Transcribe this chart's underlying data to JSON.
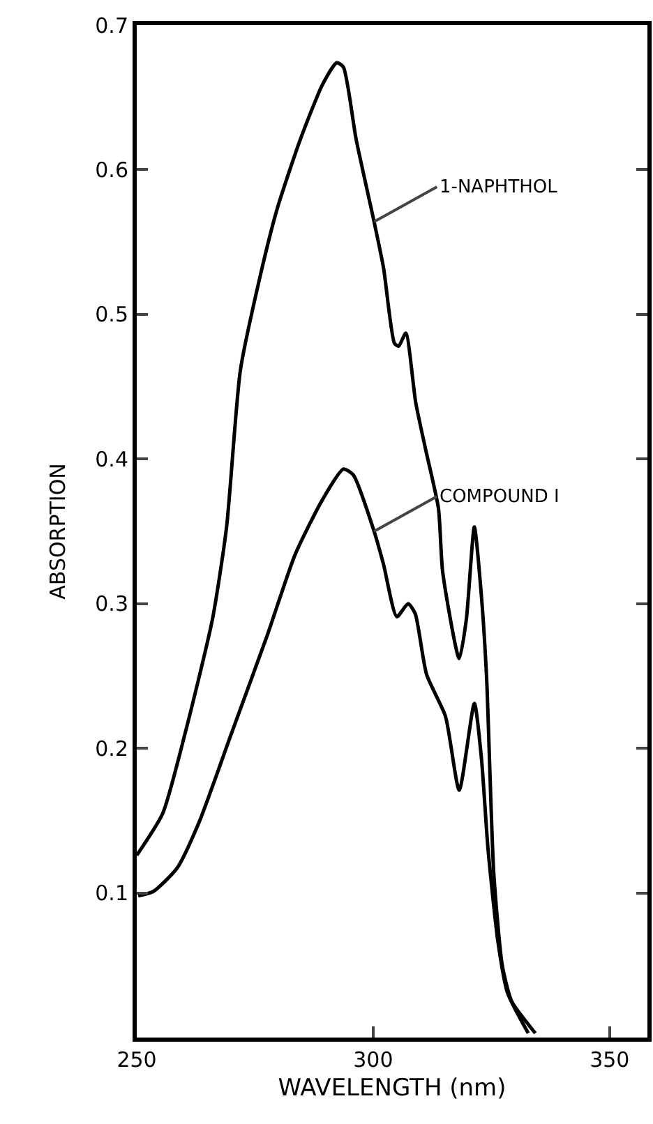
{
  "chart_data": {
    "type": "line",
    "xlabel": "WAVELENGTH (nm)",
    "ylabel": "ABSORPTION",
    "xlim": [
      250,
      358
    ],
    "xticks": [
      250,
      300,
      350
    ],
    "ylim": [
      0,
      0.7
    ],
    "yticks": [
      0.1,
      0.2,
      0.3,
      0.4,
      0.5,
      0.6,
      0.7
    ],
    "grid": false,
    "marker": "none",
    "line_style": "solid",
    "series": [
      {
        "color": "#000000",
        "x": [
          250,
          255.5,
          260.2,
          266,
          269,
          271.9,
          276,
          279.7,
          284.6,
          289.3,
          292.3,
          293.7,
          296.4,
          300.2,
          302.2,
          304.5,
          305.4,
          306.9,
          309,
          311,
          313.8,
          314.7,
          318.2,
          319.7,
          321.4,
          322.9,
          324,
          325.5,
          327.3,
          329.3,
          334.3
        ],
        "values": [
          0.126,
          0.155,
          0.21,
          0.289,
          0.353,
          0.461,
          0.525,
          0.573,
          0.621,
          0.659,
          0.674,
          0.671,
          0.621,
          0.564,
          0.532,
          0.48,
          0.478,
          0.487,
          0.439,
          0.408,
          0.366,
          0.322,
          0.262,
          0.289,
          0.353,
          0.305,
          0.248,
          0.114,
          0.05,
          0.025,
          0.003
        ]
      },
      {
        "color": "#000000",
        "x": [
          250.3,
          253.5,
          258.5,
          263.2,
          270,
          277.7,
          283.5,
          289.3,
          293.7,
          295.8,
          300.2,
          302.2,
          305,
          307.4,
          308.9,
          311.3,
          315.3,
          318.2,
          321.4,
          322.9,
          324.3,
          326.4,
          328.4,
          332.8
        ],
        "values": [
          0.098,
          0.101,
          0.117,
          0.149,
          0.21,
          0.279,
          0.334,
          0.372,
          0.393,
          0.389,
          0.35,
          0.327,
          0.291,
          0.3,
          0.293,
          0.251,
          0.222,
          0.171,
          0.231,
          0.193,
          0.13,
          0.066,
          0.031,
          0.003
        ]
      }
    ],
    "annotations": [
      {
        "text": "1-NAPHTHOL",
        "x": 300.2,
        "y": 0.564
      },
      {
        "text": "COMPOUND I",
        "x": 300.2,
        "y": 0.35
      }
    ]
  }
}
